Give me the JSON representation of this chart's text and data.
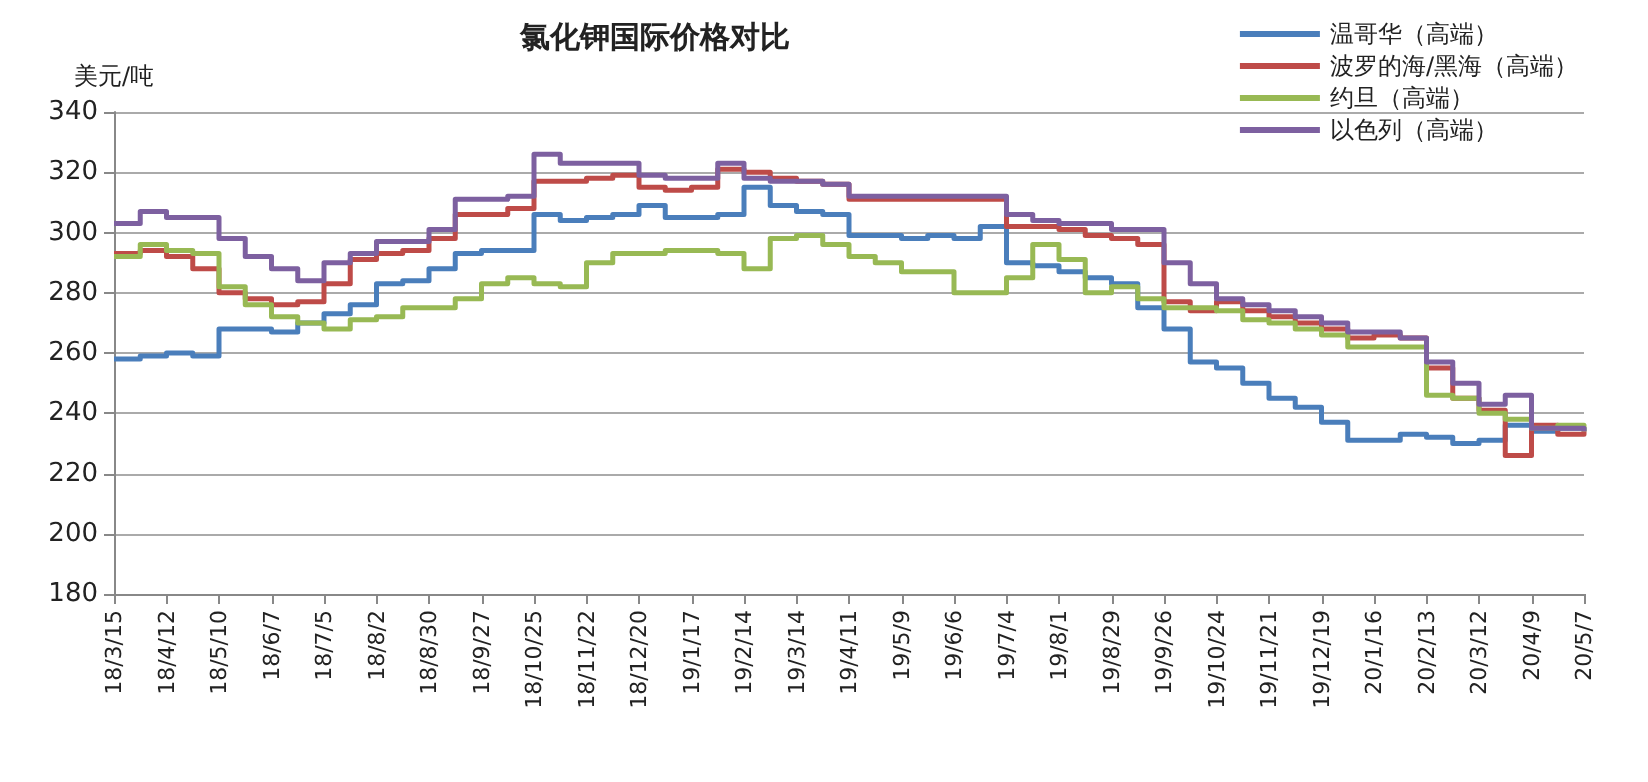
{
  "chart_data": {
    "type": "step",
    "title": "氯化钾国际价格对比",
    "ylabel": "美元/吨",
    "categories": [
      "18/3/15",
      null,
      "18/4/12",
      null,
      "18/5/10",
      null,
      "18/6/7",
      null,
      "18/7/5",
      null,
      "18/8/2",
      null,
      "18/8/30",
      null,
      "18/9/27",
      null,
      "18/10/25",
      null,
      "18/11/22",
      null,
      "18/12/20",
      null,
      "19/1/17",
      null,
      "19/2/14",
      null,
      "19/3/14",
      null,
      "19/4/11",
      null,
      "19/5/9",
      null,
      "19/6/6",
      null,
      "19/7/4",
      null,
      "19/8/1",
      null,
      "19/8/29",
      null,
      "19/9/26",
      null,
      "19/10/24",
      null,
      "19/11/21",
      null,
      "19/12/19",
      null,
      "20/1/16",
      null,
      "20/2/13",
      null,
      "20/3/12",
      null,
      "20/4/9",
      null,
      "20/5/7"
    ],
    "series": [
      {
        "name": "温哥华（高端）",
        "color": "#4a7ebb",
        "values": [
          258,
          259,
          260,
          259,
          268,
          268,
          267,
          270,
          273,
          276,
          283,
          284,
          288,
          293,
          294,
          294,
          306,
          304,
          305,
          306,
          309,
          305,
          305,
          306,
          315,
          309,
          307,
          306,
          299,
          299,
          298,
          299,
          298,
          302,
          290,
          289,
          287,
          285,
          283,
          275,
          268,
          257,
          255,
          250,
          245,
          242,
          237,
          231,
          231,
          233,
          232,
          230,
          231,
          236,
          234,
          235,
          234
        ]
      },
      {
        "name": "波罗的海/黑海（高端）",
        "color": "#be4b48",
        "values": [
          293,
          294,
          292,
          288,
          280,
          278,
          276,
          277,
          283,
          291,
          293,
          294,
          298,
          306,
          306,
          308,
          317,
          317,
          318,
          319,
          315,
          314,
          315,
          321,
          320,
          318,
          317,
          316,
          311,
          311,
          311,
          311,
          311,
          311,
          302,
          302,
          301,
          299,
          298,
          296,
          277,
          274,
          277,
          274,
          272,
          270,
          268,
          265,
          266,
          265,
          255,
          245,
          241,
          226,
          236,
          233,
          234
        ]
      },
      {
        "name": "约旦（高端）",
        "color": "#98b954",
        "values": [
          292,
          296,
          294,
          293,
          282,
          276,
          272,
          270,
          268,
          271,
          272,
          275,
          275,
          278,
          283,
          285,
          283,
          282,
          290,
          293,
          293,
          294,
          294,
          293,
          288,
          298,
          299,
          296,
          292,
          290,
          287,
          287,
          280,
          280,
          285,
          296,
          291,
          280,
          282,
          278,
          275,
          275,
          274,
          271,
          270,
          268,
          266,
          262,
          262,
          262,
          246,
          245,
          240,
          238,
          235,
          236,
          234
        ]
      },
      {
        "name": "以色列（高端）",
        "color": "#7d60a0",
        "values": [
          303,
          307,
          305,
          305,
          298,
          292,
          288,
          284,
          290,
          293,
          297,
          297,
          301,
          311,
          311,
          312,
          326,
          323,
          323,
          323,
          319,
          318,
          318,
          323,
          318,
          317,
          317,
          316,
          312,
          312,
          312,
          312,
          312,
          312,
          306,
          304,
          303,
          303,
          301,
          301,
          290,
          283,
          278,
          276,
          274,
          272,
          270,
          267,
          267,
          265,
          257,
          250,
          243,
          246,
          235,
          235,
          234
        ]
      }
    ],
    "ylim": [
      180,
      340
    ],
    "yticks": [
      180,
      200,
      220,
      240,
      260,
      280,
      300,
      320,
      340
    ],
    "grid": "y",
    "legend": "top right",
    "marker": "none",
    "line_style": "solid"
  }
}
